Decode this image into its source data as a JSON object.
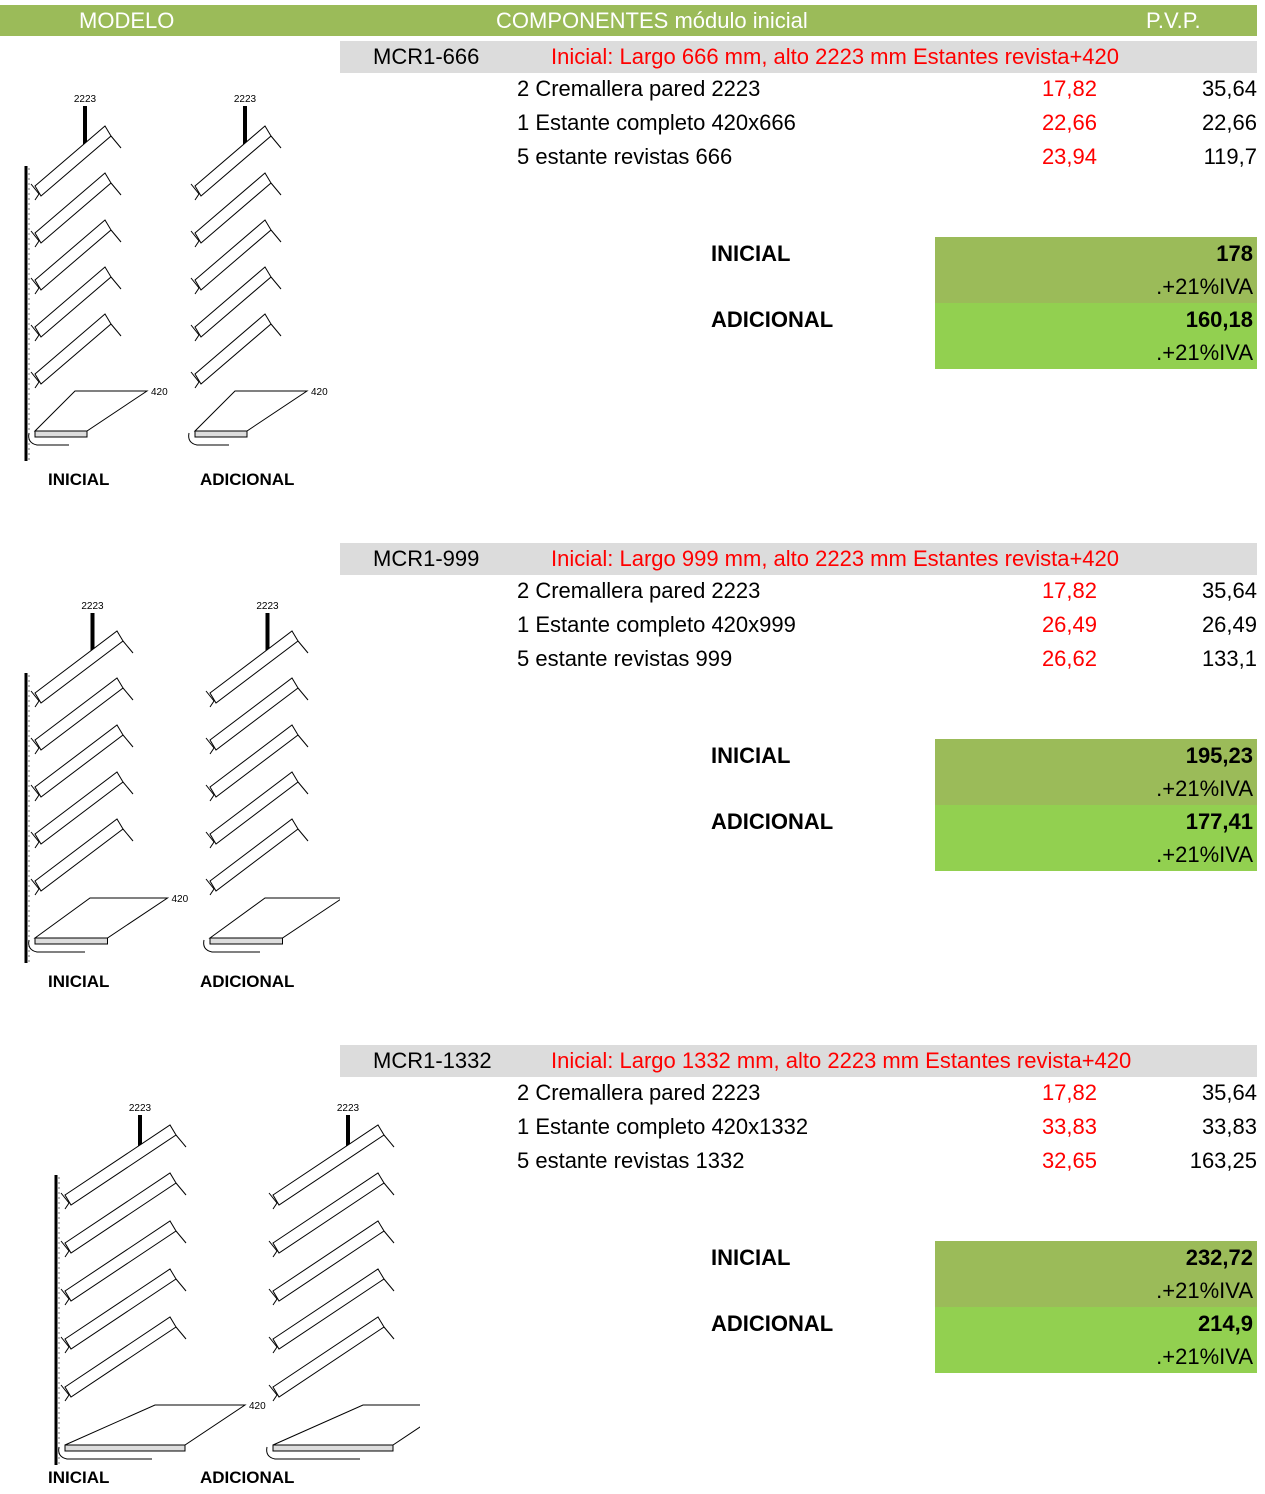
{
  "header": {
    "modelo": "MODELO",
    "componentes": "COMPONENTES  módulo inicial",
    "pvp": "P.V.P."
  },
  "blocks": [
    {
      "code": "MCR1-666",
      "desc": "Inicial: Largo 666 mm, alto 2223 mm  Estantes revista+420",
      "items": [
        {
          "text": "2 Cremallera pared 2223",
          "unit": "17,82",
          "total": "35,64"
        },
        {
          "text": "1 Estante completo 420x666",
          "unit": "22,66",
          "total": "22,66"
        },
        {
          "text": "5 estante revistas 666",
          "unit": "23,94",
          "total": "119,7"
        }
      ],
      "inicial_label": "INICIAL",
      "inicial_price": "178",
      "inicial_iva": ".+21%IVA",
      "adicional_label": "ADICIONAL",
      "adicional_price": "160,18",
      "adicional_iva": ".+21%IVA",
      "dim_height": "2223",
      "dim_depth": "420",
      "cap_inicial": "INICIAL",
      "cap_adicional": "ADICIONAL"
    },
    {
      "code": "MCR1-999",
      "desc": "Inicial: Largo 999 mm, alto 2223 mm  Estantes revista+420",
      "items": [
        {
          "text": "2 Cremallera pared 2223",
          "unit": "17,82",
          "total": "35,64"
        },
        {
          "text": "1 Estante completo 420x999",
          "unit": "26,49",
          "total": "26,49"
        },
        {
          "text": "5 estante revistas 999",
          "unit": "26,62",
          "total": "133,1"
        }
      ],
      "inicial_label": "INICIAL",
      "inicial_price": "195,23",
      "inicial_iva": ".+21%IVA",
      "adicional_label": "ADICIONAL",
      "adicional_price": "177,41",
      "adicional_iva": ".+21%IVA",
      "dim_height": "2223",
      "dim_depth": "420",
      "cap_inicial": "INICIAL",
      "cap_adicional": "ADICIONAL"
    },
    {
      "code": "MCR1-1332",
      "desc": "Inicial: Largo 1332 mm, alto 2223 mm  Estantes revista+420",
      "items": [
        {
          "text": "2 Cremallera pared 2223",
          "unit": "17,82",
          "total": "35,64"
        },
        {
          "text": "1 Estante completo 420x1332",
          "unit": "33,83",
          "total": "33,83"
        },
        {
          "text": "5 estante revistas 1332",
          "unit": "32,65",
          "total": "163,25"
        }
      ],
      "inicial_label": "INICIAL",
      "inicial_price": "232,72",
      "inicial_iva": ".+21%IVA",
      "adicional_label": "ADICIONAL",
      "adicional_price": "214,9",
      "adicional_iva": ".+21%IVA",
      "dim_height": "2223",
      "dim_depth": "420",
      "cap_inicial": "INICIAL",
      "cap_adicional": "ADICIONAL"
    }
  ]
}
